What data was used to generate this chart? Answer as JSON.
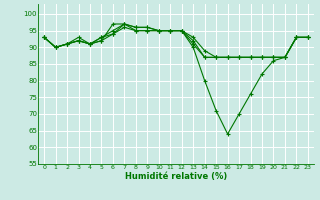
{
  "title": "",
  "xlabel": "Humidité relative (%)",
  "ylabel": "",
  "xlim": [
    -0.5,
    23.5
  ],
  "ylim": [
    55,
    103
  ],
  "yticks": [
    55,
    60,
    65,
    70,
    75,
    80,
    85,
    90,
    95,
    100
  ],
  "xticks": [
    0,
    1,
    2,
    3,
    4,
    5,
    6,
    7,
    8,
    9,
    10,
    11,
    12,
    13,
    14,
    15,
    16,
    17,
    18,
    19,
    20,
    21,
    22,
    23
  ],
  "background_color": "#cceae4",
  "grid_color": "#ffffff",
  "line_color": "#007700",
  "curves": [
    [
      93,
      90,
      91,
      92,
      91,
      92,
      97,
      97,
      96,
      96,
      95,
      95,
      95,
      90,
      80,
      71,
      64,
      70,
      76,
      82,
      86,
      87,
      93,
      93
    ],
    [
      93,
      90,
      91,
      93,
      91,
      93,
      95,
      97,
      96,
      96,
      95,
      95,
      95,
      93,
      89,
      87,
      87,
      87,
      87,
      87,
      87,
      87,
      93,
      93
    ],
    [
      93,
      90,
      91,
      92,
      91,
      93,
      94,
      96,
      95,
      95,
      95,
      95,
      95,
      92,
      87,
      87,
      87,
      87,
      87,
      87,
      87,
      87,
      93,
      93
    ],
    [
      93,
      90,
      91,
      92,
      91,
      92,
      94,
      97,
      95,
      95,
      95,
      95,
      95,
      91,
      87,
      87,
      87,
      87,
      87,
      87,
      87,
      87,
      93,
      93
    ]
  ],
  "marker": "+",
  "marker_size": 3,
  "linewidth": 0.8
}
